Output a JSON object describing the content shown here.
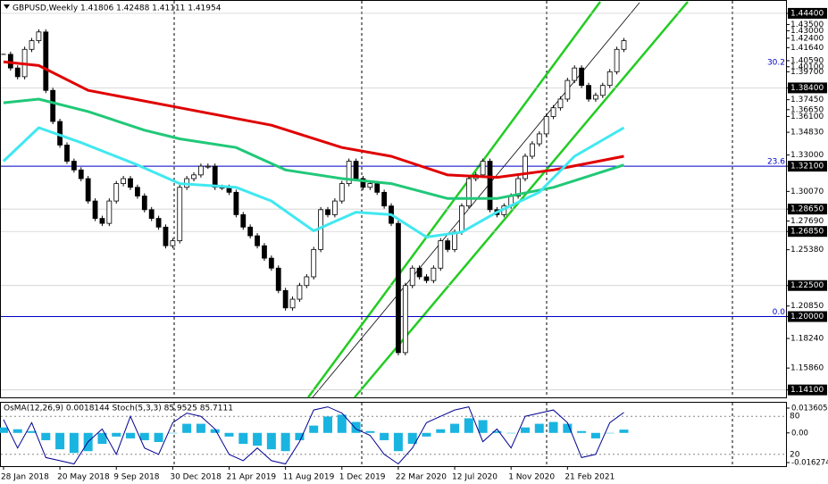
{
  "chart_data": [
    {
      "type": "candlestick",
      "title": "GBPUSD,Weekly  1.41806 1.42488 1.41111 1.41954",
      "values": [
        1.411,
        1.4,
        1.393,
        1.415,
        1.422,
        1.429,
        1.382,
        1.357,
        1.338,
        1.325,
        1.318,
        1.311,
        1.293,
        1.279,
        1.275,
        1.293,
        1.307,
        1.311,
        1.304,
        1.297,
        1.286,
        1.279,
        1.272,
        1.257,
        1.261,
        1.304,
        1.311,
        1.314,
        1.321,
        1.321,
        1.304,
        1.304,
        1.3,
        1.282,
        1.272,
        1.265,
        1.257,
        1.247,
        1.239,
        1.221,
        1.207,
        1.214,
        1.225,
        1.232,
        1.254,
        1.286,
        1.282,
        1.293,
        1.307,
        1.325,
        1.311,
        1.304,
        1.307,
        1.3,
        1.289,
        1.275,
        1.171,
        1.225,
        1.239,
        1.232,
        1.229,
        1.239,
        1.261,
        1.254,
        1.268,
        1.289,
        1.311,
        1.314,
        1.325,
        1.286,
        1.282,
        1.289,
        1.297,
        1.311,
        1.329,
        1.339,
        1.347,
        1.361,
        1.368,
        1.375,
        1.39,
        1.4,
        1.386,
        1.375,
        1.378,
        1.386,
        1.397,
        1.415,
        1.422
      ],
      "moving_averages": [
        {
          "color": "#e00000",
          "x": [
            0,
            5,
            12,
            25,
            38,
            48,
            55,
            63,
            70,
            78,
            88
          ],
          "values": [
            1.405,
            1.402,
            1.382,
            1.368,
            1.354,
            1.336,
            1.329,
            1.314,
            1.312,
            1.318,
            1.329
          ]
        },
        {
          "color": "#20c878",
          "x": [
            0,
            5,
            12,
            20,
            25,
            33,
            40,
            48,
            55,
            63,
            70,
            78,
            88
          ],
          "values": [
            1.372,
            1.375,
            1.365,
            1.35,
            1.343,
            1.336,
            1.318,
            1.311,
            1.307,
            1.295,
            1.295,
            1.304,
            1.322
          ]
        },
        {
          "color": "#40e8f0",
          "x": [
            0,
            5,
            11,
            19,
            25,
            33,
            38,
            44,
            50,
            55,
            60,
            65,
            70,
            76,
            81,
            88
          ],
          "values": [
            1.325,
            1.352,
            1.34,
            1.322,
            1.307,
            1.304,
            1.293,
            1.269,
            1.284,
            1.282,
            1.264,
            1.268,
            1.284,
            1.3,
            1.329,
            1.352
          ]
        }
      ],
      "levels": [
        {
          "label": "30.2",
          "value": 1.401
        },
        {
          "label": "23.6",
          "value": 1.321
        },
        {
          "label": "0.0",
          "value": 1.2
        }
      ],
      "level_color": "#0000c8",
      "xlim": [
        -0.5,
        111
      ],
      "xticks": [
        {
          "value": 0,
          "label": "28 Jan 2018"
        },
        {
          "value": 8,
          "label": "20 May 2018"
        },
        {
          "value": 16,
          "label": "9 Sep 2018"
        },
        {
          "value": 24,
          "label": "30 Dec 2018"
        },
        {
          "value": 32,
          "label": "21 Apr 2019"
        },
        {
          "value": 40,
          "label": "11 Aug 2019"
        },
        {
          "value": 48,
          "label": "1 Dec 2019"
        },
        {
          "value": 56,
          "label": "22 Mar 2020"
        },
        {
          "value": 64,
          "label": "12 Jul 2020"
        },
        {
          "value": 72,
          "label": "1 Nov 2020"
        },
        {
          "value": 80,
          "label": "21 Feb 2021"
        }
      ],
      "ylim": [
        1.135,
        1.454
      ],
      "yticks": [
        {
          "value": 1.444,
          "label": "1.44400",
          "highlight": true
        },
        {
          "value": 1.435,
          "label": "1.43500"
        },
        {
          "value": 1.43,
          "label": "1.43000"
        },
        {
          "value": 1.424,
          "label": "1.42400"
        },
        {
          "value": 1.4164,
          "label": "1.41640"
        },
        {
          "value": 1.4059,
          "label": "1.40590"
        },
        {
          "value": 1.401,
          "label": "1.40100"
        },
        {
          "value": 1.397,
          "label": "1.39700"
        },
        {
          "value": 1.384,
          "label": "1.38400",
          "highlight": true
        },
        {
          "value": 1.3745,
          "label": "1.37450"
        },
        {
          "value": 1.3665,
          "label": "1.36650"
        },
        {
          "value": 1.361,
          "label": "1.36100"
        },
        {
          "value": 1.3483,
          "label": "1.34830"
        },
        {
          "value": 1.33,
          "label": "1.33000"
        },
        {
          "value": 1.321,
          "label": "1.32100",
          "highlight": true
        },
        {
          "value": 1.3007,
          "label": "1.30070"
        },
        {
          "value": 1.2865,
          "label": "1.28650",
          "highlight": true
        },
        {
          "value": 1.2769,
          "label": "1.27690"
        },
        {
          "value": 1.2685,
          "label": "1.26850",
          "highlight": true
        },
        {
          "value": 1.2538,
          "label": "1.25380"
        },
        {
          "value": 1.225,
          "label": "1.22500",
          "highlight": true
        },
        {
          "value": 1.2085,
          "label": "1.20850"
        },
        {
          "value": 1.2,
          "label": "1.20000",
          "highlight": true
        },
        {
          "value": 1.1824,
          "label": "1.18240"
        },
        {
          "value": 1.1586,
          "label": "1.15860"
        },
        {
          "value": 1.141,
          "label": "1.14100",
          "highlight": true
        }
      ]
    },
    {
      "type": "oscillator",
      "title": "OsMA(12,26,9) 0.0018144  Stoch(5,3,3) 85.9525 85.7111",
      "x": [
        0,
        2,
        4,
        6,
        8,
        10,
        12,
        14,
        16,
        18,
        20,
        22,
        24,
        26,
        28,
        30,
        32,
        34,
        36,
        38,
        40,
        42,
        44,
        46,
        48,
        50,
        52,
        54,
        56,
        58,
        60,
        62,
        64,
        66,
        68,
        70,
        72,
        74,
        76,
        78,
        80,
        82,
        84,
        86,
        88
      ],
      "series": [
        {
          "color": "#1ab4e0",
          "values": [
            0.003,
            0.002,
            0.001,
            -0.004,
            -0.009,
            -0.011,
            -0.01,
            -0.006,
            -0.002,
            -0.003,
            -0.004,
            -0.005,
            0.0,
            0.005,
            0.005,
            0.002,
            -0.002,
            -0.006,
            -0.007,
            -0.009,
            -0.01,
            -0.004,
            0.004,
            0.009,
            0.01,
            0.006,
            0.001,
            -0.004,
            -0.01,
            -0.006,
            -0.002,
            0.002,
            0.005,
            0.008,
            0.007,
            0.001,
            0.0,
            0.003,
            0.005,
            0.006,
            0.005,
            0.001,
            -0.003,
            0.0,
            0.0018
          ]
        },
        {
          "color": "#000090",
          "axis": "y2",
          "values": [
            75,
            30,
            70,
            15,
            10,
            5,
            40,
            60,
            20,
            80,
            30,
            20,
            70,
            85,
            80,
            60,
            20,
            10,
            30,
            10,
            5,
            40,
            90,
            95,
            85,
            60,
            50,
            20,
            5,
            30,
            70,
            80,
            90,
            95,
            40,
            60,
            30,
            80,
            85,
            90,
            70,
            15,
            20,
            70,
            86
          ]
        }
      ],
      "ylim": [
        -0.016274,
        0.0136055
      ],
      "yticks": [
        0.0136055,
        {
          "value": 0,
          "label": "0.00"
        },
        -0.016274
      ],
      "y2lim": [
        0,
        100
      ],
      "y2ticks": [
        80,
        20
      ]
    }
  ]
}
